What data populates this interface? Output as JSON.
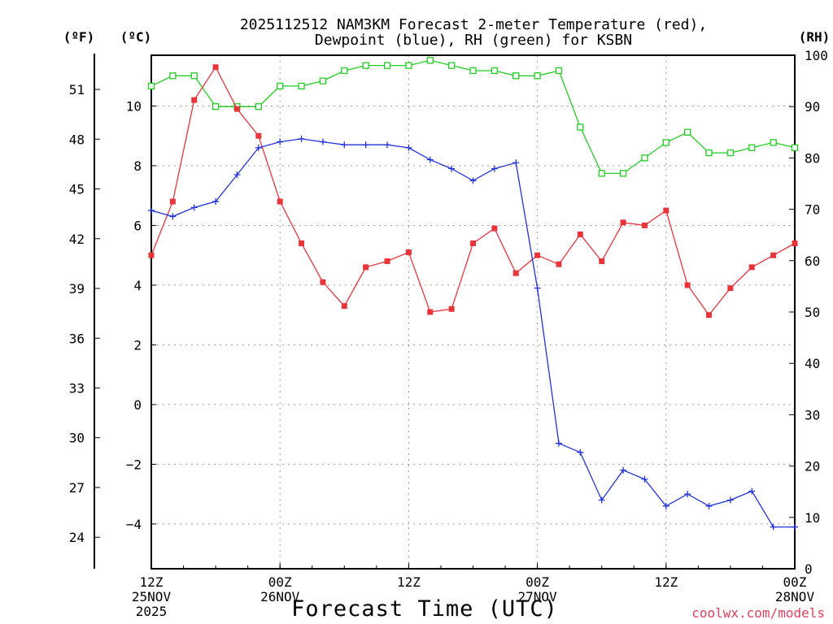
{
  "chart_data": {
    "type": "line",
    "title": [
      "2025112512 NAM3KM Forecast 2-meter Temperature (red),",
      "Dewpoint (blue), RH (green) for KSBN"
    ],
    "xlabel": "Forecast Time (UTC)",
    "watermark": "coolwx.com/models",
    "x_hours_range": [
      0,
      60
    ],
    "x_ticks": [
      {
        "hour": 0,
        "lines": [
          "12Z",
          "25NOV",
          "2025"
        ]
      },
      {
        "hour": 12,
        "lines": [
          "00Z",
          "26NOV"
        ]
      },
      {
        "hour": 24,
        "lines": [
          "12Z"
        ]
      },
      {
        "hour": 36,
        "lines": [
          "00Z",
          "27NOV"
        ]
      },
      {
        "hour": 48,
        "lines": [
          "12Z"
        ]
      },
      {
        "hour": 60,
        "lines": [
          "00Z",
          "28NOV"
        ]
      }
    ],
    "left_axis": {
      "label": "(ºC)",
      "ylim": [
        -5.5,
        11.7
      ],
      "ticks": [
        -4,
        -2,
        0,
        2,
        4,
        6,
        8,
        10
      ]
    },
    "far_left_axis": {
      "label": "(ºF)",
      "ticks": [
        24,
        27,
        30,
        33,
        36,
        39,
        42,
        45,
        48,
        51
      ]
    },
    "right_axis": {
      "label": "(RH)",
      "ylim": [
        0,
        100
      ],
      "ticks": [
        0,
        10,
        20,
        30,
        40,
        50,
        60,
        70,
        80,
        90,
        100
      ]
    },
    "series": [
      {
        "name": "2-meter Temperature (ºC)",
        "color": "#e8353b",
        "marker": "filled-square",
        "axis": "left",
        "values": [
          5.0,
          6.8,
          10.2,
          11.3,
          9.9,
          9.0,
          6.8,
          5.4,
          4.1,
          3.3,
          4.6,
          4.8,
          5.1,
          3.1,
          3.2,
          5.4,
          5.9,
          4.4,
          5.0,
          4.7,
          5.7,
          4.8,
          6.1,
          6.0,
          6.5,
          4.0,
          3.0,
          3.9,
          4.6,
          5.0,
          5.4
        ]
      },
      {
        "name": "Dewpoint (ºC)",
        "color": "#2233dd",
        "marker": "plus",
        "axis": "left",
        "values": [
          6.5,
          6.3,
          6.6,
          6.8,
          7.7,
          8.6,
          8.8,
          8.9,
          8.8,
          8.7,
          8.7,
          8.7,
          8.6,
          8.2,
          7.9,
          7.5,
          7.9,
          8.1,
          3.9,
          -1.3,
          -1.6,
          -3.2,
          -2.2,
          -2.5,
          -3.4,
          -3.0,
          -3.4,
          -3.2,
          -2.9,
          -4.1,
          -4.1
        ]
      },
      {
        "name": "RH (%)",
        "color": "#22cc22",
        "marker": "open-square",
        "axis": "right",
        "values": [
          94,
          96,
          96,
          90,
          90,
          90,
          94,
          94,
          95,
          97,
          98,
          98,
          98,
          99,
          98,
          97,
          97,
          96,
          96,
          97,
          86,
          77,
          77,
          80,
          83,
          85,
          81,
          81,
          82,
          83,
          82
        ]
      }
    ]
  }
}
